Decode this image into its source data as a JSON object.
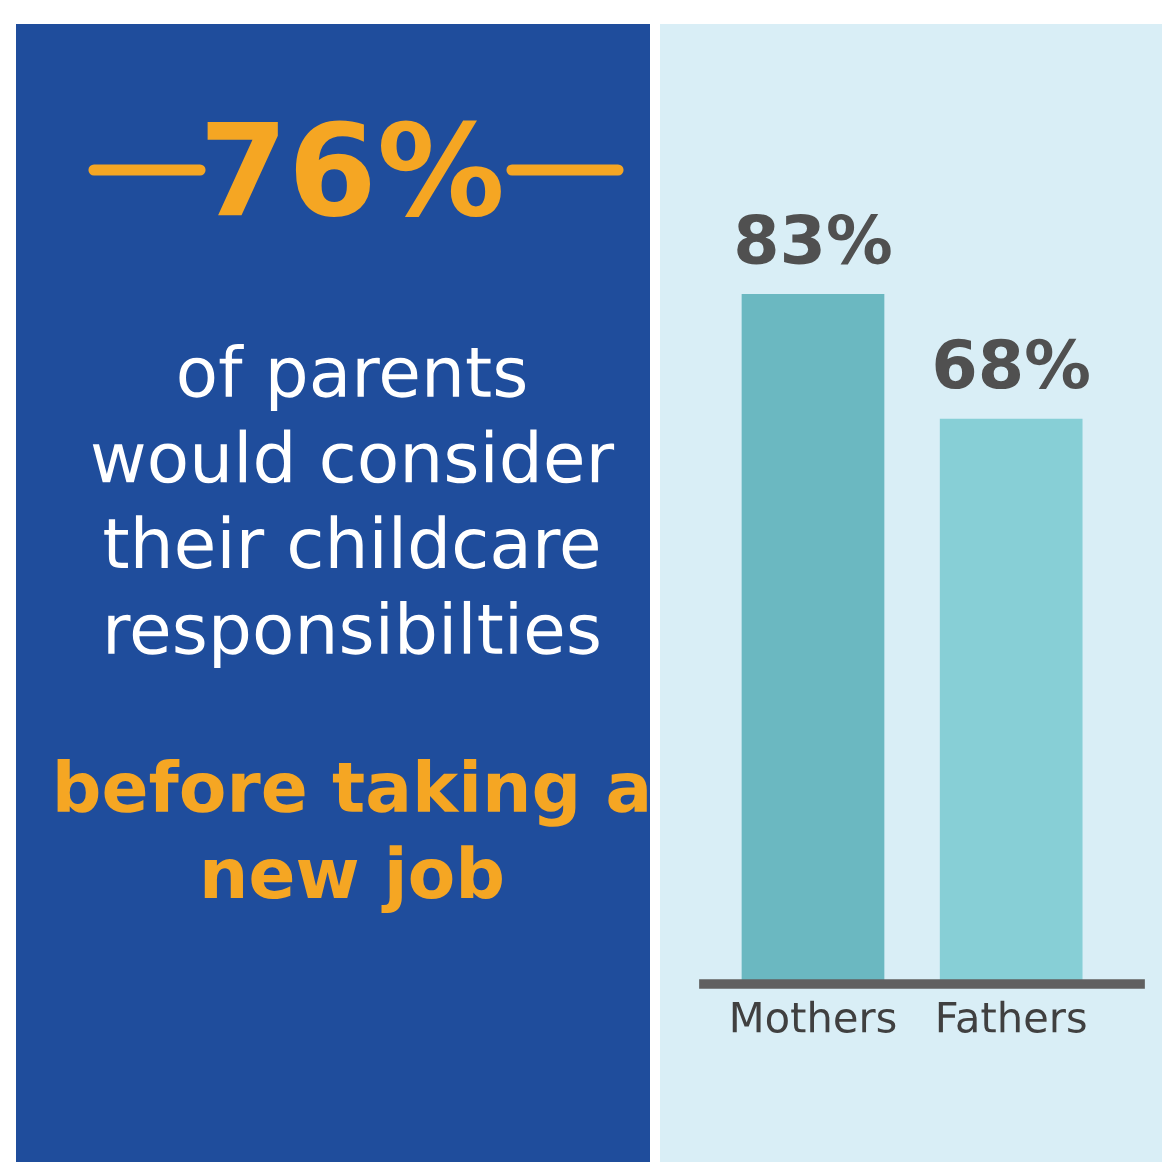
{
  "chart_data": {
    "type": "bar",
    "categories": [
      "Mothers",
      "Fathers"
    ],
    "values": [
      83,
      68
    ],
    "colors": [
      "#6bb8c1",
      "#87cfd6"
    ],
    "value_labels": [
      "83%",
      "68%"
    ],
    "annotations": [
      "76%",
      "of parents\nwould consider\ntheir childcare\nresponsibilties",
      "before taking a\nnew job"
    ]
  }
}
